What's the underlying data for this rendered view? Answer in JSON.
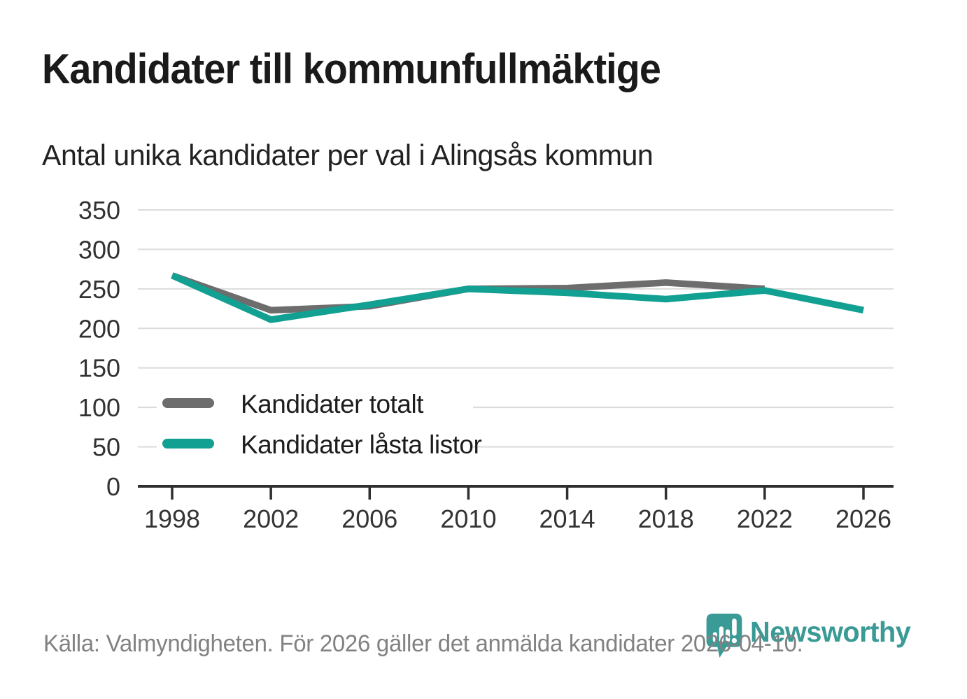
{
  "header": {
    "title": "Kandidater till kommunfullmäktige",
    "subtitle": "Antal unika kandidater per val i Alingsås kommun"
  },
  "chart_data": {
    "type": "line",
    "title": "Kandidater till kommunfullmäktige",
    "subtitle": "Antal unika kandidater per val i Alingsås kommun",
    "x": [
      "1998",
      "2002",
      "2006",
      "2010",
      "2014",
      "2018",
      "2022",
      "2026"
    ],
    "series": [
      {
        "name": "Kandidater totalt",
        "color": "#6d6d6d",
        "values": [
          267,
          223,
          228,
          250,
          251,
          258,
          250,
          null
        ]
      },
      {
        "name": "Kandidater låsta listor",
        "color": "#12a092",
        "values": [
          267,
          211,
          230,
          250,
          245,
          237,
          248,
          223
        ]
      }
    ],
    "xlabel": "",
    "ylabel": "",
    "ylim": [
      0,
      350
    ],
    "ytick_step": 50,
    "yticks": [
      "0",
      "50",
      "100",
      "150",
      "200",
      "250",
      "300",
      "350"
    ],
    "grid": "horizontal",
    "legend_position": "inside-left-middle"
  },
  "footer": {
    "source_text": "Källa: Valmyndigheten. För 2026 gäller det anmälda kandidater 2026-04-10.",
    "brand_name": "Newsworthy"
  },
  "colors": {
    "title_text": "#1a1a1a",
    "axis_text": "#333333",
    "gridline": "#dcdcdc",
    "axis_line": "#2f2f2f",
    "series_total": "#6d6d6d",
    "series_locked": "#12a092",
    "footer_text": "#828282",
    "brand_teal": "#3a9a96",
    "background": "#ffffff"
  },
  "icons": {
    "brand_pin": "newsworthy-pin-bar-chart-icon"
  }
}
